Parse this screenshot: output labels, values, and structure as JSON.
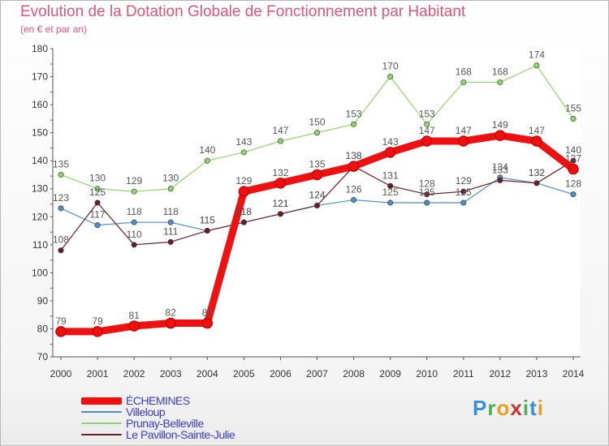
{
  "title": "Evolution de la Dotation Globale de Fonctionnement par Habitant",
  "subtitle": "(en € et par an)",
  "logo": {
    "letters": [
      "P",
      "r",
      "o",
      "x",
      "i",
      "t",
      "i"
    ],
    "colors": [
      "#3a8fd9",
      "#4fae4f",
      "#e8a020",
      "#d03030",
      "#4fae4f",
      "#3a8fd9",
      "#e8a020"
    ]
  },
  "chart_data": {
    "type": "line",
    "title": "Evolution de la Dotation Globale de Fonctionnement par Habitant",
    "subtitle": "(en € et par an)",
    "xlabel": "",
    "ylabel": "",
    "x": [
      "2000",
      "2001",
      "2002",
      "2003",
      "2004",
      "2005",
      "2006",
      "2007",
      "2008",
      "2009",
      "2010",
      "2011",
      "2012",
      "2013",
      "2014"
    ],
    "ylim": [
      70,
      180
    ],
    "yticks": [
      70,
      80,
      90,
      100,
      110,
      120,
      130,
      140,
      150,
      160,
      170,
      180
    ],
    "grid": false,
    "legend_position": "bottom",
    "series": [
      {
        "name": "Villeloup",
        "color": "#4f8ec8",
        "values": [
          123,
          117,
          118,
          118,
          115,
          118,
          121,
          124,
          126,
          125,
          125,
          125,
          134,
          132,
          128
        ]
      },
      {
        "name": "Prunay-Belleville",
        "color": "#8ed66a",
        "values": [
          135,
          130,
          129,
          130,
          140,
          143,
          147,
          150,
          153,
          170,
          153,
          168,
          168,
          174,
          155
        ]
      },
      {
        "name": "Le Pavillon-Sainte-Julie",
        "color": "#6b1e28",
        "values": [
          108,
          125,
          110,
          111,
          115,
          118,
          121,
          124,
          138,
          131,
          128,
          129,
          133,
          132,
          140
        ]
      },
      {
        "name": "ÉCHEMINES",
        "color": "#ee1111",
        "values": [
          79,
          79,
          81,
          82,
          82,
          129,
          132,
          135,
          138,
          143,
          147,
          147,
          149,
          147,
          137
        ]
      }
    ]
  }
}
